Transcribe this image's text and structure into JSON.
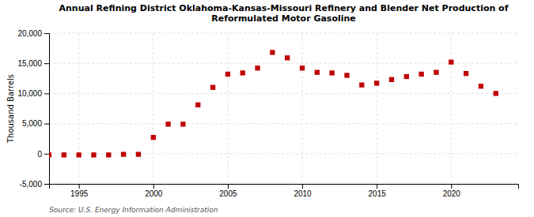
{
  "chart_data": {
    "type": "scatter",
    "title": "Annual Refining District Oklahoma-Kansas-Missouri Refinery and Blender Net Production of\nReformulated Motor Gasoline",
    "ylabel": "Thousand Barrels",
    "source": "Source: U.S. Energy Information Administration",
    "x": [
      1993,
      1994,
      1995,
      1996,
      1997,
      1998,
      1999,
      2000,
      2001,
      2002,
      2003,
      2004,
      2005,
      2006,
      2007,
      2008,
      2009,
      2010,
      2011,
      2012,
      2013,
      2014,
      2015,
      2016,
      2017,
      2018,
      2019,
      2020,
      2021,
      2022,
      2023
    ],
    "values": [
      -200,
      -200,
      -200,
      -200,
      -200,
      -100,
      -100,
      2700,
      4900,
      4900,
      8100,
      11000,
      13200,
      13400,
      14200,
      16800,
      15900,
      14200,
      13500,
      13400,
      13000,
      11400,
      11700,
      12300,
      12800,
      13200,
      13500,
      15200,
      13300,
      11200,
      10000
    ],
    "color": "#c00000",
    "marker": "square",
    "xlim": [
      1993.0,
      2024.5
    ],
    "xticks": [
      1995,
      2000,
      2005,
      2010,
      2015,
      2020
    ],
    "ylim": [
      -5000,
      20000
    ],
    "yticks": [
      {
        "value": -5000,
        "label": "-5,000"
      },
      0,
      {
        "value": 5000,
        "label": "5,000"
      },
      {
        "value": 10000,
        "label": "10,000"
      },
      {
        "value": 15000,
        "label": "15,000"
      },
      {
        "value": 20000,
        "label": "20,000"
      }
    ],
    "grid": true
  }
}
